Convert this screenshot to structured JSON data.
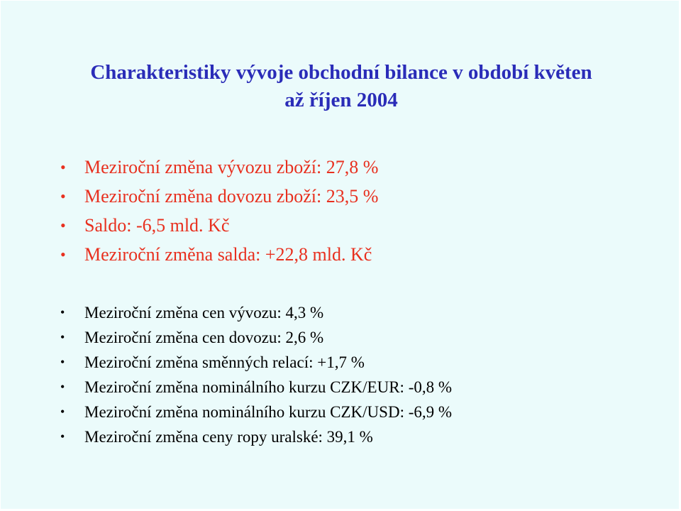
{
  "title": {
    "line1": "Charakteristiky vývoje obchodní bilance v období květen",
    "line2": "až říjen 2004"
  },
  "colors": {
    "background": "#ebfbfb",
    "title": "#2a2cb8",
    "primary_items": "#e8301f",
    "secondary_items": "#000000"
  },
  "bullet_icon": "bullet-dot",
  "primary_items": [
    "Meziroční změna vývozu zboží: 27,8 %",
    "Meziroční změna dovozu zboží: 23,5 %",
    "Saldo: -6,5 mld. Kč",
    "Meziroční změna salda: +22,8 mld. Kč"
  ],
  "secondary_items": [
    "Meziroční změna cen vývozu: 4,3 %",
    "Meziroční změna cen dovozu: 2,6 %",
    "Meziroční změna směnných relací: +1,7 %",
    "Meziroční změna nominálního kurzu CZK/EUR: -0,8 %",
    "Meziroční změna nominálního kurzu CZK/USD: -6,9 %",
    "Meziroční změna ceny ropy uralské: 39,1 %"
  ]
}
